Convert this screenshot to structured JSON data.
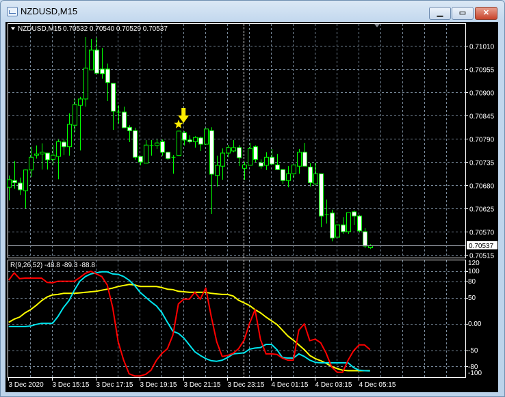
{
  "window": {
    "title": "NZDUSD,M15",
    "icon": "chart-window-icon",
    "buttons": {
      "minimize": "minimize-icon",
      "maximize": "maximize-icon",
      "close": "close-icon"
    }
  },
  "chart_header": {
    "symbol_label": "NZDUSD,M15",
    "ohlc_text": "0.70532 0.70540 0.70529 0.70537"
  },
  "current_price_label": "0.70537",
  "indicator_header": "R(9,26,52) -48.8 -89.3 -88.8",
  "colors": {
    "background": "#000000",
    "candle": "#00ff00",
    "bull_body": "#000000",
    "bear_body": "#ffffff",
    "grid": "#778899",
    "osc_fast": "#ff0000",
    "osc_mid": "#00e5ee",
    "osc_slow": "#ffff00",
    "marker": "#ffee00"
  },
  "markers": [
    {
      "type": "star",
      "icon": "star-icon",
      "candle_index": 31
    },
    {
      "type": "arrow-down",
      "icon": "arrow-down-icon",
      "candle_index": 32
    }
  ],
  "chart_data": [
    {
      "type": "candlestick",
      "price_axis_labels": [
        "0.71010",
        "0.70955",
        "0.70900",
        "0.70845",
        "0.70790",
        "0.70735",
        "0.70680",
        "0.70625",
        "0.70570",
        "0.70515"
      ],
      "time_axis_labels": [
        "3 Dec 2020",
        "3 Dec 15:15",
        "3 Dec 17:15",
        "3 Dec 19:15",
        "3 Dec 21:15",
        "3 Dec 23:15",
        "4 Dec 01:15",
        "4 Dec 03:15",
        "4 Dec 05:15"
      ],
      "ylim": [
        0.70515,
        0.7101
      ],
      "grid": true,
      "ohlc": [
        [
          0.70675,
          0.70703,
          0.70644,
          0.70693
        ],
        [
          0.70691,
          0.70737,
          0.70672,
          0.70686
        ],
        [
          0.70685,
          0.70698,
          0.70657,
          0.70669
        ],
        [
          0.70667,
          0.70717,
          0.70625,
          0.70716
        ],
        [
          0.70716,
          0.70771,
          0.70699,
          0.70746
        ],
        [
          0.70751,
          0.70774,
          0.70743,
          0.70754
        ],
        [
          0.70754,
          0.70779,
          0.70717,
          0.70758
        ],
        [
          0.70756,
          0.70756,
          0.70717,
          0.7074
        ],
        [
          0.70741,
          0.70775,
          0.70727,
          0.70751
        ],
        [
          0.70748,
          0.70788,
          0.70694,
          0.70783
        ],
        [
          0.70782,
          0.70788,
          0.70751,
          0.70771
        ],
        [
          0.70771,
          0.7085,
          0.7075,
          0.70824
        ],
        [
          0.70822,
          0.70884,
          0.70806,
          0.70871
        ],
        [
          0.70869,
          0.70889,
          0.70762,
          0.70884
        ],
        [
          0.70884,
          0.71031,
          0.70866,
          0.70957
        ],
        [
          0.70953,
          0.71026,
          0.70953,
          0.71
        ],
        [
          0.71,
          0.71029,
          0.70945,
          0.70945
        ],
        [
          0.70955,
          0.71005,
          0.70932,
          0.70944
        ],
        [
          0.70955,
          0.70968,
          0.70879,
          0.70923
        ],
        [
          0.70921,
          0.70921,
          0.70811,
          0.70855
        ],
        [
          0.70853,
          0.70869,
          0.70826,
          0.70853
        ],
        [
          0.70853,
          0.70866,
          0.70816,
          0.70816
        ],
        [
          0.70817,
          0.70822,
          0.70782,
          0.70809
        ],
        [
          0.70809,
          0.70816,
          0.7074,
          0.70746
        ],
        [
          0.70748,
          0.70748,
          0.70727,
          0.70735
        ],
        [
          0.70732,
          0.70787,
          0.70732,
          0.70775
        ],
        [
          0.70774,
          0.70787,
          0.7075,
          0.70774
        ],
        [
          0.70774,
          0.70788,
          0.70766,
          0.7078
        ],
        [
          0.70783,
          0.70788,
          0.7075,
          0.70758
        ],
        [
          0.70758,
          0.70759,
          0.7074,
          0.70743
        ],
        [
          0.70746,
          0.70751,
          0.70707,
          0.70746
        ],
        [
          0.7075,
          0.70808,
          0.7075,
          0.70808
        ],
        [
          0.70804,
          0.70808,
          0.70774,
          0.70787
        ],
        [
          0.70787,
          0.70798,
          0.70779,
          0.70783
        ],
        [
          0.70783,
          0.70796,
          0.70769,
          0.70793
        ],
        [
          0.70792,
          0.70795,
          0.70761,
          0.70777
        ],
        [
          0.70777,
          0.70813,
          0.70777,
          0.70813
        ],
        [
          0.70809,
          0.70817,
          0.70612,
          0.70706
        ],
        [
          0.70703,
          0.7075,
          0.70677,
          0.70727
        ],
        [
          0.70725,
          0.70767,
          0.70693,
          0.70756
        ],
        [
          0.70756,
          0.70775,
          0.70746,
          0.70769
        ],
        [
          0.70761,
          0.70787,
          0.70758,
          0.70769
        ],
        [
          0.70769,
          0.70775,
          0.70725,
          0.70745
        ],
        [
          0.7072,
          0.70735,
          0.70693,
          0.70728
        ],
        [
          0.70727,
          0.7078,
          0.70727,
          0.70767
        ],
        [
          0.70771,
          0.70774,
          0.70735,
          0.70741
        ],
        [
          0.70733,
          0.70741,
          0.70719,
          0.70725
        ],
        [
          0.70727,
          0.70758,
          0.70716,
          0.70746
        ],
        [
          0.70746,
          0.70766,
          0.7073,
          0.7073
        ],
        [
          0.70728,
          0.70754,
          0.70716,
          0.70717
        ],
        [
          0.70717,
          0.70717,
          0.70683,
          0.70691
        ],
        [
          0.70691,
          0.70725,
          0.70675,
          0.70707
        ],
        [
          0.70707,
          0.70728,
          0.70698,
          0.70728
        ],
        [
          0.70725,
          0.70766,
          0.70707,
          0.70758
        ],
        [
          0.70758,
          0.7078,
          0.70725,
          0.70725
        ],
        [
          0.70723,
          0.70732,
          0.70677,
          0.70686
        ],
        [
          0.70683,
          0.70733,
          0.70683,
          0.70707
        ],
        [
          0.70707,
          0.70707,
          0.70581,
          0.70607
        ],
        [
          0.7061,
          0.70646,
          0.70589,
          0.7061
        ],
        [
          0.70614,
          0.70622,
          0.70547,
          0.70555
        ],
        [
          0.70557,
          0.70586,
          0.70557,
          0.70586
        ],
        [
          0.70586,
          0.70604,
          0.70565,
          0.7057
        ],
        [
          0.7057,
          0.70615,
          0.70565,
          0.70615
        ],
        [
          0.70617,
          0.7062,
          0.70586,
          0.70607
        ],
        [
          0.70607,
          0.70609,
          0.70568,
          0.70572
        ],
        [
          0.7057,
          0.70578,
          0.70531,
          0.70536
        ],
        [
          0.70532,
          0.7054,
          0.70529,
          0.70537
        ]
      ]
    },
    {
      "type": "line",
      "ylim": [
        -100,
        120
      ],
      "y_axis_labels": [
        "120",
        "100",
        "80",
        "50",
        "0.00",
        "-50",
        "-80",
        "-100"
      ],
      "levels": [
        100,
        80,
        50,
        0,
        -50,
        -80
      ],
      "series": [
        {
          "color": "#ff0000",
          "values": [
            83,
            97,
            86,
            87,
            87,
            87,
            87,
            79,
            78,
            81,
            81,
            81,
            81,
            88,
            96,
            100,
            95,
            90,
            74,
            31,
            -34,
            -69,
            -95,
            -99,
            -99,
            -96,
            -88,
            -69,
            -56,
            -47,
            -21,
            38,
            47,
            47,
            60,
            47,
            68,
            14,
            -34,
            -62,
            -60,
            -56,
            -47,
            -31,
            1,
            27,
            -30,
            -57,
            -57,
            -58,
            -65,
            -69,
            -69,
            -12,
            0,
            -32,
            -29,
            -36,
            -56,
            -82,
            -92,
            -92,
            -69,
            -51,
            -40,
            -40,
            -48.8
          ]
        },
        {
          "color": "#00e5ee",
          "values": [
            -5,
            -5,
            -5,
            -5,
            -4,
            -1,
            1,
            1,
            1,
            14,
            31,
            44,
            64,
            81,
            90,
            95,
            97,
            99,
            99,
            95,
            94,
            90,
            83,
            73,
            60,
            51,
            42,
            34,
            21,
            3,
            -14,
            -18,
            -27,
            -40,
            -53,
            -60,
            -66,
            -70,
            -71,
            -69,
            -64,
            -57,
            -56,
            -55,
            -48,
            -46,
            -45,
            -39,
            -39,
            -49,
            -64,
            -65,
            -65,
            -57,
            -62,
            -69,
            -73,
            -74,
            -74,
            -74,
            -74,
            -74,
            -74,
            -83,
            -88,
            -89,
            -89.3
          ]
        },
        {
          "color": "#ffff00",
          "values": [
            3,
            9,
            13,
            21,
            27,
            35,
            44,
            51,
            55,
            56,
            58,
            58,
            58,
            59,
            60,
            61,
            62,
            64,
            66,
            68,
            71,
            73,
            75,
            74,
            71,
            71,
            71,
            71,
            69,
            66,
            65,
            62,
            61,
            60,
            60,
            60,
            60,
            58,
            57,
            56,
            56,
            53,
            45,
            40,
            35,
            27,
            21,
            13,
            6,
            -1,
            -12,
            -23,
            -31,
            -40,
            -49,
            -60,
            -66,
            -70,
            -75,
            -81,
            -85,
            -88,
            -89,
            -89,
            -89,
            -89,
            -88.8
          ]
        }
      ]
    }
  ]
}
